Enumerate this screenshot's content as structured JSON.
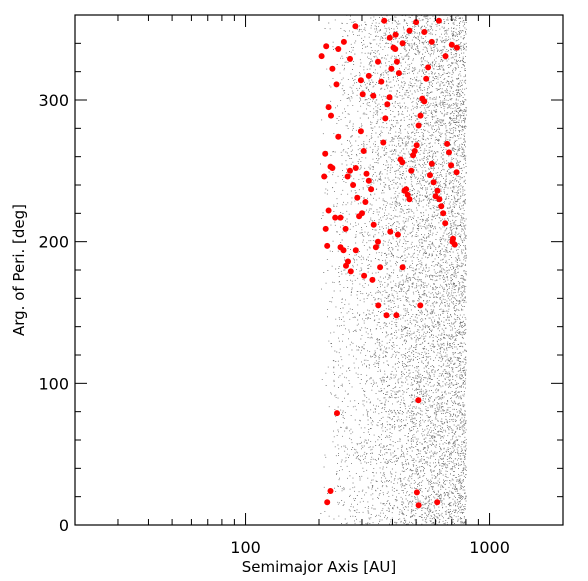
{
  "chart_data": {
    "type": "scatter",
    "xscale": "log",
    "xlabel": "Semimajor Axis [AU]",
    "ylabel": "Arg. of Peri. [deg]",
    "xlim": [
      20,
      2000
    ],
    "ylim": [
      0,
      360
    ],
    "xticks": [
      {
        "value": 100,
        "label": "100"
      },
      {
        "value": 1000,
        "label": "1000"
      }
    ],
    "yticks": [
      {
        "value": 0,
        "label": "0"
      },
      {
        "value": 100,
        "label": "100"
      },
      {
        "value": 200,
        "label": "200"
      },
      {
        "value": 300,
        "label": "300"
      }
    ],
    "grid": false,
    "legend": "none",
    "series": [
      {
        "style": "background-dots",
        "color": "#000000",
        "description_range": {
          "a_min": 200,
          "a_max": 800,
          "omega_min": 0,
          "omega_max": 360
        }
      },
      {
        "style": "highlighted",
        "color": "#ff0000",
        "points": [
          [
            212,
            262
          ],
          [
            210,
            246
          ],
          [
            213,
            209
          ],
          [
            216,
            197
          ],
          [
            219,
            222
          ],
          [
            223,
            253
          ],
          [
            227,
            252
          ],
          [
            219,
            295
          ],
          [
            224,
            289
          ],
          [
            236,
            311
          ],
          [
            240,
            274
          ],
          [
            245,
            217
          ],
          [
            252,
            194
          ],
          [
            258,
            183
          ],
          [
            263,
            186
          ],
          [
            270,
            179
          ],
          [
            262,
            246
          ],
          [
            268,
            250
          ],
          [
            276,
            240
          ],
          [
            283,
            252
          ],
          [
            287,
            231
          ],
          [
            292,
            218
          ],
          [
            297,
            278
          ],
          [
            302,
            304
          ],
          [
            305,
            264
          ],
          [
            313,
            248
          ],
          [
            320,
            243
          ],
          [
            327,
            237
          ],
          [
            335,
            212
          ],
          [
            342,
            196
          ],
          [
            349,
            200
          ],
          [
            356,
            182
          ],
          [
            360,
            313
          ],
          [
            367,
            270
          ],
          [
            374,
            287
          ],
          [
            381,
            297
          ],
          [
            389,
            302
          ],
          [
            396,
            322
          ],
          [
            404,
            337
          ],
          [
            411,
            336
          ],
          [
            417,
            327
          ],
          [
            425,
            319
          ],
          [
            432,
            258
          ],
          [
            439,
            256
          ],
          [
            448,
            236
          ],
          [
            455,
            237
          ],
          [
            462,
            233
          ],
          [
            470,
            230
          ],
          [
            478,
            250
          ],
          [
            486,
            261
          ],
          [
            494,
            264
          ],
          [
            503,
            268
          ],
          [
            512,
            282
          ],
          [
            521,
            289
          ],
          [
            530,
            301
          ],
          [
            540,
            299
          ],
          [
            550,
            315
          ],
          [
            560,
            323
          ],
          [
            570,
            247
          ],
          [
            580,
            255
          ],
          [
            590,
            242
          ],
          [
            601,
            232
          ],
          [
            612,
            236
          ],
          [
            623,
            230
          ],
          [
            634,
            225
          ],
          [
            646,
            220
          ],
          [
            658,
            213
          ],
          [
            670,
            269
          ],
          [
            682,
            263
          ],
          [
            696,
            254
          ],
          [
            708,
            202
          ],
          [
            720,
            198
          ],
          [
            733,
            249
          ],
          [
            205,
            331
          ],
          [
            214,
            338
          ],
          [
            227,
            322
          ],
          [
            240,
            336
          ],
          [
            253,
            341
          ],
          [
            268,
            329
          ],
          [
            282,
            352
          ],
          [
            297,
            314
          ],
          [
            320,
            317
          ],
          [
            334,
            303
          ],
          [
            349,
            327
          ],
          [
            370,
            356
          ],
          [
            390,
            344
          ],
          [
            412,
            346
          ],
          [
            440,
            340
          ],
          [
            470,
            349
          ],
          [
            500,
            355
          ],
          [
            540,
            348
          ],
          [
            580,
            341
          ],
          [
            620,
            356
          ],
          [
            660,
            331
          ],
          [
            700,
            339
          ],
          [
            735,
            337
          ],
          [
            233,
            217
          ],
          [
            257,
            209
          ],
          [
            283,
            194
          ],
          [
            306,
            176
          ],
          [
            331,
            173
          ],
          [
            350,
            155
          ],
          [
            378,
            148
          ],
          [
            415,
            148
          ],
          [
            520,
            155
          ],
          [
            705,
            200
          ],
          [
            237,
            79
          ],
          [
            511,
            88
          ],
          [
            223,
            24
          ],
          [
            216,
            16
          ],
          [
            504,
            23
          ],
          [
            512,
            14
          ],
          [
            610,
            16
          ],
          [
            245,
            196
          ],
          [
            392,
            207
          ],
          [
            421,
            205
          ],
          [
            440,
            182
          ],
          [
            300,
            220
          ],
          [
            310,
            228
          ]
        ]
      }
    ]
  }
}
